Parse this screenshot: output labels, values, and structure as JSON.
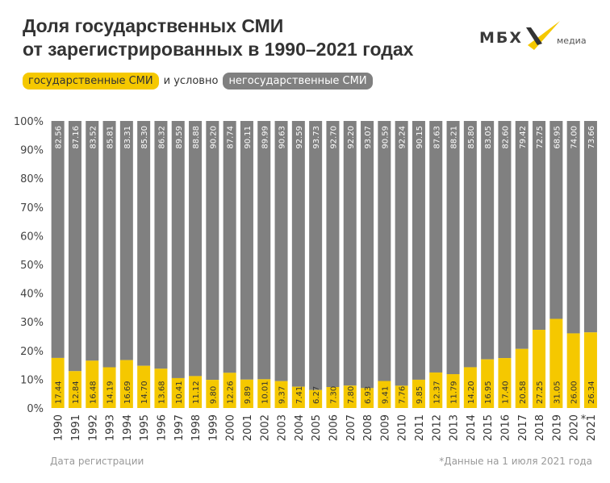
{
  "title_line1": "Доля государственных СМИ",
  "title_line2": "от зарегистрированных в 1990–2021 годах",
  "logo": {
    "text": "МБХ",
    "sub": "медиа"
  },
  "legend": {
    "state": "государственные СМИ",
    "connector": "и условно",
    "nonstate": "негосударственные СМИ"
  },
  "footer": {
    "xlabel": "Дата регистрации",
    "note": "*Данные на 1 июля 2021 года"
  },
  "colors": {
    "state": "#f5c800",
    "nonstate": "#808080"
  },
  "chart_data": {
    "type": "bar",
    "stacked": true,
    "xlabel": "Дата регистрации",
    "ylim": [
      0,
      100
    ],
    "yticks": [
      "0%",
      "10%",
      "20%",
      "30%",
      "40%",
      "50%",
      "60%",
      "70%",
      "80%",
      "90%",
      "100%"
    ],
    "categories": [
      "1990",
      "1991",
      "1992",
      "1993",
      "1994",
      "1995",
      "1996",
      "1997",
      "1998",
      "1999",
      "2000",
      "2001",
      "2002",
      "2003",
      "2004",
      "2005",
      "2006",
      "2007",
      "2008",
      "2009",
      "2010",
      "2011",
      "2012",
      "2013",
      "2014",
      "2015",
      "2016",
      "2017",
      "2018",
      "2019",
      "2020",
      "2021*"
    ],
    "series": [
      {
        "name": "государственные СМИ",
        "values": [
          "17.44",
          "12.84",
          "16.48",
          "14.19",
          "16.69",
          "14.70",
          "13.68",
          "10.41",
          "11.12",
          "9.80",
          "12.26",
          "9.89",
          "10.01",
          "9.37",
          "7.41",
          "6.27",
          "7.30",
          "7.80",
          "6.93",
          "9.41",
          "7.76",
          "9.85",
          "12.37",
          "11.79",
          "14.20",
          "16.95",
          "17.40",
          "20.58",
          "27.25",
          "31.05",
          "26.00",
          "26.34"
        ]
      },
      {
        "name": "негосударственные СМИ",
        "values": [
          "82.56",
          "87.16",
          "83.52",
          "85.81",
          "83.31",
          "85.30",
          "86.32",
          "89.59",
          "88.88",
          "90.20",
          "87.74",
          "90.11",
          "89.99",
          "90.63",
          "92.59",
          "93.73",
          "92.70",
          "92.20",
          "93.07",
          "90.59",
          "92.24",
          "90.15",
          "87.63",
          "88.21",
          "85.80",
          "83.05",
          "82.60",
          "79.42",
          "72.75",
          "68.95",
          "74.00",
          "73.66"
        ]
      }
    ]
  }
}
